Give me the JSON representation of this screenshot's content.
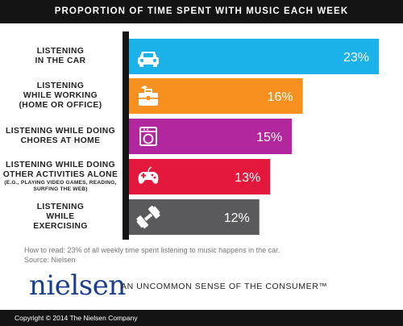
{
  "header": {
    "title": "PROPORTION OF TIME SPENT WITH MUSIC EACH WEEK"
  },
  "chart_data": {
    "type": "bar",
    "orientation": "horizontal",
    "title": "PROPORTION OF TIME SPENT WITH MUSIC EACH WEEK",
    "categories": [
      {
        "label": "LISTENING\nIN THE CAR",
        "sub": ""
      },
      {
        "label": "LISTENING\nWHILE WORKING\n(HOME OR OFFICE)",
        "sub": ""
      },
      {
        "label": "LISTENING WHILE DOING\nCHORES AT HOME",
        "sub": ""
      },
      {
        "label": "LISTENING WHILE DOING\nOTHER  ACTIVITIES ALONE",
        "sub": "(E.G., PLAYING VIDEO GAMES, READING,\nSURFING THE WEB)"
      },
      {
        "label": "LISTENING\nWHILE\nEXERCISING",
        "sub": ""
      }
    ],
    "values": [
      23,
      16,
      15,
      13,
      12
    ],
    "value_labels": [
      "23%",
      "16%",
      "15%",
      "13%",
      "12%"
    ],
    "bar_colors": [
      "#1ab2e8",
      "#f7901e",
      "#b3279e",
      "#e4173c",
      "#5a5a5c"
    ],
    "icons": [
      "car-icon",
      "briefcase-icon",
      "washing-machine-icon",
      "game-controller-icon",
      "dumbbell-icon"
    ],
    "xlim": [
      0,
      23
    ],
    "grid": false,
    "legend": "none"
  },
  "footnote": {
    "how_to_read": "How to read: 23% of all weekly time spent listening to music happens in the car.",
    "source": "Source: Nielsen"
  },
  "brand": {
    "name": "nielsen",
    "tagline": "AN UNCOMMON SENSE OF THE CONSUMER™"
  },
  "footer": {
    "copyright": "Copyright © 2014 The Nielsen Company"
  }
}
